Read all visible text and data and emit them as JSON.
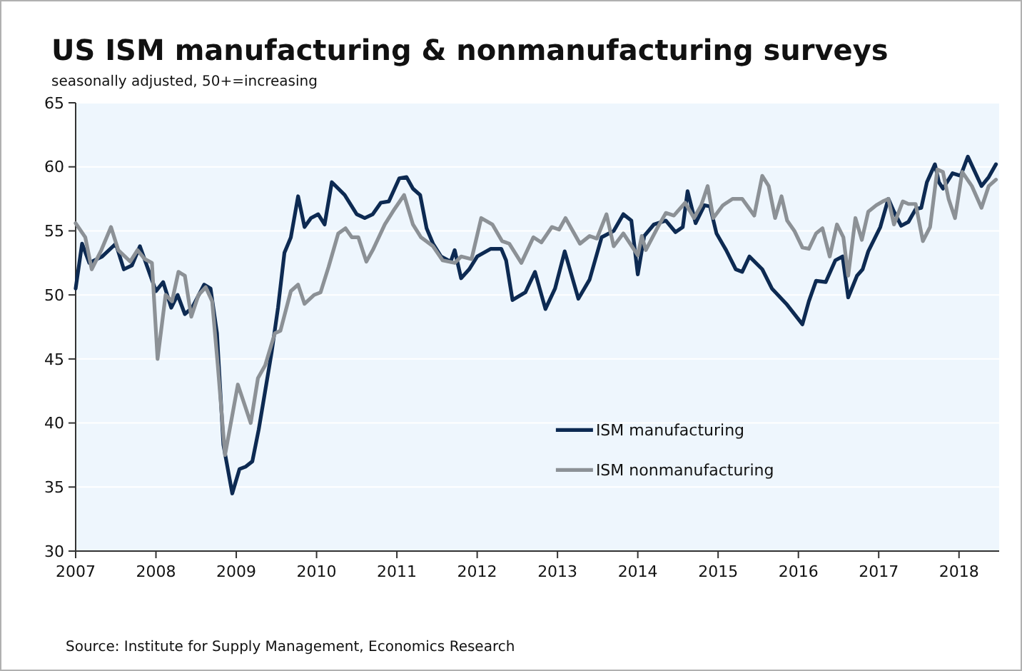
{
  "chart_data": {
    "type": "line",
    "title": "US ISM manufacturing & nonmanufacturing surveys",
    "subtitle": "seasonally adjusted, 50+=increasing",
    "annotations": [
      "Source: Institute for Supply Management, Economics Research"
    ],
    "xlim": [
      2007,
      2018.5
    ],
    "xticks": [
      2007,
      2008,
      2009,
      2010,
      2011,
      2012,
      2013,
      2014,
      2015,
      2016,
      2017,
      2018
    ],
    "ylim": [
      30,
      65
    ],
    "yticks": [
      30,
      35,
      40,
      45,
      50,
      55,
      60,
      65
    ],
    "grid": "y",
    "legend": "bottom",
    "series": [
      {
        "name": "ISM manufacturing",
        "color": "#0d2a52",
        "x": [
          2007.0,
          2007.08,
          2007.17,
          2007.33,
          2007.5,
          2007.6,
          2007.7,
          2007.8,
          2008.0,
          2008.09,
          2008.19,
          2008.27,
          2008.36,
          2008.45,
          2008.6,
          2008.68,
          2008.76,
          2008.84,
          2008.95,
          2009.04,
          2009.12,
          2009.2,
          2009.28,
          2009.36,
          2009.44,
          2009.52,
          2009.6,
          2009.68,
          2009.77,
          2009.85,
          2009.93,
          2010.02,
          2010.1,
          2010.19,
          2010.35,
          2010.5,
          2010.6,
          2010.7,
          2010.8,
          2010.9,
          2011.03,
          2011.12,
          2011.2,
          2011.29,
          2011.37,
          2011.45,
          2011.55,
          2011.67,
          2011.72,
          2011.8,
          2011.9,
          2012.0,
          2012.17,
          2012.3,
          2012.36,
          2012.44,
          2012.6,
          2012.72,
          2012.85,
          2012.97,
          2013.09,
          2013.26,
          2013.4,
          2013.55,
          2013.7,
          2013.82,
          2013.92,
          2014.0,
          2014.08,
          2014.2,
          2014.35,
          2014.47,
          2014.56,
          2014.62,
          2014.72,
          2014.83,
          2014.9,
          2014.98,
          2015.1,
          2015.22,
          2015.3,
          2015.39,
          2015.55,
          2015.67,
          2015.85,
          2016.05,
          2016.13,
          2016.22,
          2016.34,
          2016.46,
          2016.55,
          2016.62,
          2016.73,
          2016.8,
          2016.87,
          2017.02,
          2017.12,
          2017.19,
          2017.28,
          2017.37,
          2017.46,
          2017.53,
          2017.6,
          2017.7,
          2017.75,
          2017.8,
          2017.92,
          2018.02,
          2018.11,
          2018.28,
          2018.37,
          2018.46
        ],
        "values": [
          50.5,
          54,
          52.5,
          53,
          54,
          52,
          52.3,
          53.8,
          50.3,
          51,
          49,
          50,
          48.5,
          49,
          50.8,
          50.5,
          47,
          38.3,
          34.5,
          36.4,
          36.6,
          37,
          39.5,
          42.5,
          45.5,
          49,
          53.3,
          54.5,
          57.7,
          55.3,
          56,
          56.3,
          55.5,
          58.8,
          57.8,
          56.3,
          56,
          56.3,
          57.2,
          57.3,
          59.1,
          59.2,
          58.3,
          57.8,
          55.2,
          54,
          53,
          52.6,
          53.5,
          51.3,
          52,
          53,
          53.6,
          53.6,
          52.7,
          49.6,
          50.2,
          51.8,
          48.9,
          50.5,
          53.4,
          49.7,
          51.2,
          54.5,
          55,
          56.3,
          55.8,
          51.6,
          54.6,
          55.5,
          55.8,
          54.9,
          55.3,
          58.1,
          55.6,
          57,
          56.9,
          54.8,
          53.5,
          52,
          51.8,
          53,
          52,
          50.5,
          49.3,
          47.7,
          49.5,
          51.1,
          51,
          52.7,
          53,
          49.8,
          51.5,
          52,
          53.4,
          55.3,
          57.5,
          56.5,
          55.4,
          55.7,
          56.7,
          56.8,
          58.8,
          60.2,
          58.8,
          58.3,
          59.5,
          59.3,
          60.8,
          58.5,
          59.2,
          60.2
        ]
      },
      {
        "name": "ISM nonmanufacturing",
        "color": "#8c9196",
        "x": [
          2007.0,
          2007.12,
          2007.2,
          2007.32,
          2007.44,
          2007.53,
          2007.68,
          2007.77,
          2007.86,
          2007.95,
          2008.02,
          2008.12,
          2008.2,
          2008.28,
          2008.36,
          2008.44,
          2008.53,
          2008.62,
          2008.7,
          2008.77,
          2008.86,
          2009.02,
          2009.18,
          2009.27,
          2009.36,
          2009.48,
          2009.55,
          2009.68,
          2009.77,
          2009.85,
          2009.97,
          2010.05,
          2010.15,
          2010.27,
          2010.36,
          2010.44,
          2010.52,
          2010.62,
          2010.7,
          2010.85,
          2010.97,
          2011.09,
          2011.2,
          2011.3,
          2011.45,
          2011.57,
          2011.72,
          2011.8,
          2011.93,
          2012.05,
          2012.19,
          2012.31,
          2012.4,
          2012.55,
          2012.7,
          2012.8,
          2012.93,
          2013.02,
          2013.1,
          2013.28,
          2013.4,
          2013.49,
          2013.61,
          2013.7,
          2013.82,
          2014.0,
          2014.05,
          2014.1,
          2014.25,
          2014.35,
          2014.45,
          2014.59,
          2014.7,
          2014.79,
          2014.87,
          2014.94,
          2015.06,
          2015.18,
          2015.3,
          2015.45,
          2015.55,
          2015.63,
          2015.71,
          2015.79,
          2015.86,
          2015.95,
          2016.05,
          2016.13,
          2016.22,
          2016.3,
          2016.39,
          2016.48,
          2016.56,
          2016.62,
          2016.71,
          2016.79,
          2016.87,
          2016.97,
          2017.05,
          2017.12,
          2017.19,
          2017.3,
          2017.37,
          2017.46,
          2017.55,
          2017.64,
          2017.73,
          2017.8,
          2017.87,
          2017.95,
          2018.04,
          2018.16,
          2018.28,
          2018.37,
          2018.46
        ],
        "values": [
          55.6,
          54.5,
          52,
          53.5,
          55.3,
          53.5,
          52.6,
          53.5,
          52.8,
          52.5,
          45,
          50,
          49.5,
          51.8,
          51.5,
          48.3,
          50,
          50.6,
          49.5,
          44.5,
          37.5,
          43,
          40,
          43.5,
          44.5,
          47,
          47.2,
          50.3,
          50.8,
          49.3,
          50,
          50.2,
          52.2,
          54.8,
          55.2,
          54.5,
          54.5,
          52.6,
          53.5,
          55.5,
          56.7,
          57.8,
          55.5,
          54.5,
          53.8,
          52.7,
          52.5,
          53,
          52.8,
          56,
          55.5,
          54.2,
          54,
          52.5,
          54.5,
          54.1,
          55.3,
          55.1,
          56,
          54,
          54.6,
          54.4,
          56.3,
          53.8,
          54.8,
          53.1,
          54.6,
          53.5,
          55.3,
          56.4,
          56.2,
          57.2,
          56,
          57,
          58.5,
          56,
          57,
          57.5,
          57.5,
          56.2,
          59.3,
          58.5,
          56,
          57.7,
          55.8,
          55,
          53.7,
          53.6,
          54.8,
          55.2,
          53,
          55.5,
          54.5,
          51.5,
          56,
          54.3,
          56.5,
          57,
          57.3,
          57.5,
          55.5,
          57.3,
          57.1,
          57.1,
          54.2,
          55.3,
          59.8,
          59.6,
          57.5,
          56,
          59.6,
          58.5,
          56.8,
          58.5,
          59
        ]
      }
    ]
  }
}
